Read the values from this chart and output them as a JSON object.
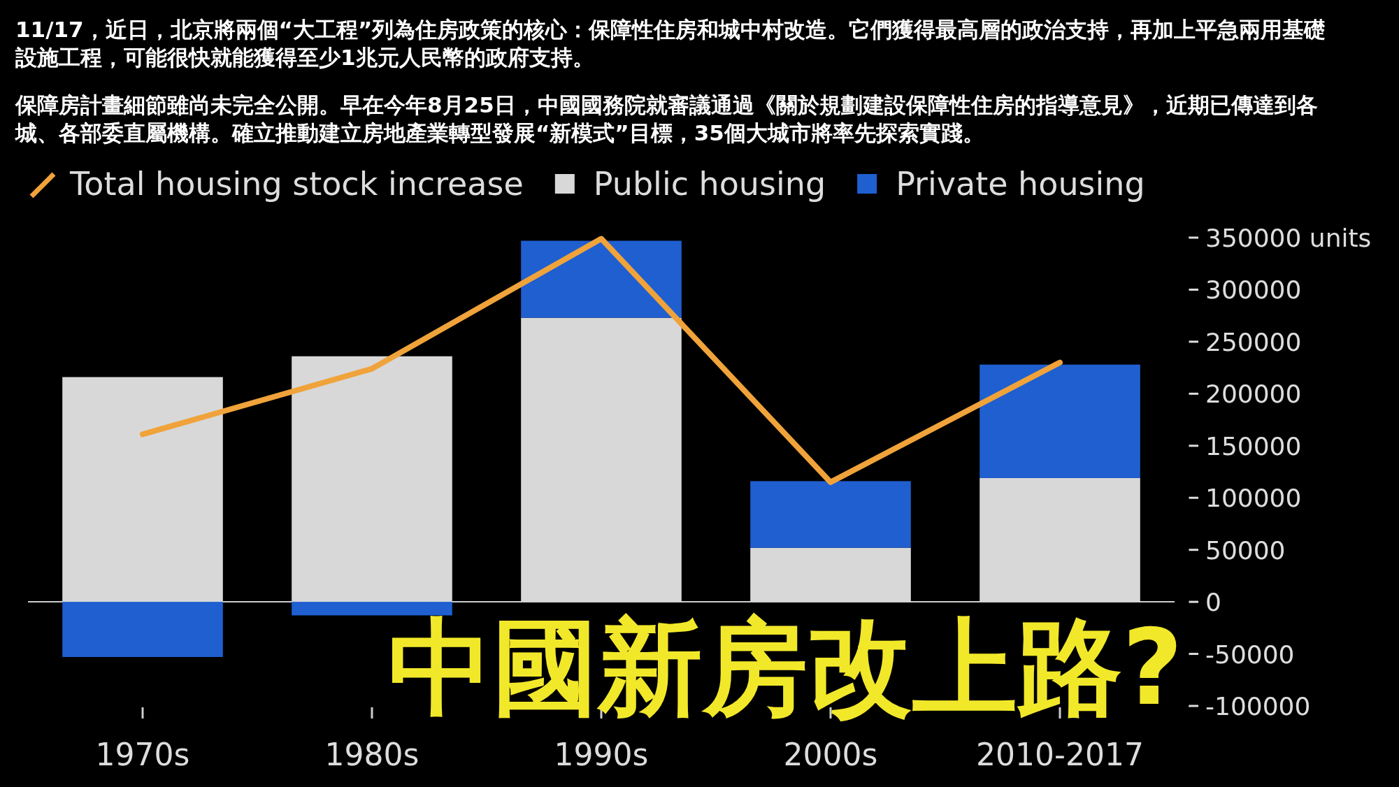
{
  "chart_data": {
    "type": "bar",
    "stacked": true,
    "title": "11/17，近日，北京將兩個“大工程”列為住房政策的核心：保障性住房和城中村改造。它們獲得最高層的政治支持，再加上平急兩用基礎設施工程，可能很快就能獲得至少1兆元人民幣的政府支持。",
    "subtitle": "保障房計畫細節雖尚未完全公開。早在今年8月25日，中國國務院就審議通過《關於規劃建設保障性住房的指導意見》，近期已傳達到各城、各部委直屬機構。確立推動建立房地產業轉型發展“新模式”目標，35個大城市將率先探索實踐。",
    "categories": [
      "1970s",
      "1980s",
      "1990s",
      "2000s",
      "2010-2017"
    ],
    "series": [
      {
        "name": "Total housing stock increase",
        "type": "line",
        "color": "#f0a33a",
        "values": [
          161000,
          224000,
          349000,
          115000,
          230000
        ]
      },
      {
        "name": "Public housing",
        "color": "#d8d8d8",
        "values": [
          216000,
          236000,
          273000,
          52000,
          119000
        ]
      },
      {
        "name": "Private housing",
        "color": "#1f5fd0",
        "values": [
          -53000,
          -13000,
          74000,
          64000,
          109000
        ]
      }
    ],
    "ylim": [
      -100000,
      350000
    ],
    "yticks": [
      {
        "value": 350000,
        "label": "350000 units"
      },
      300000,
      250000,
      200000,
      150000,
      100000,
      50000,
      0,
      -50000,
      -100000
    ],
    "legend": "top left",
    "annotations": [
      "中國新房改上路?"
    ]
  }
}
